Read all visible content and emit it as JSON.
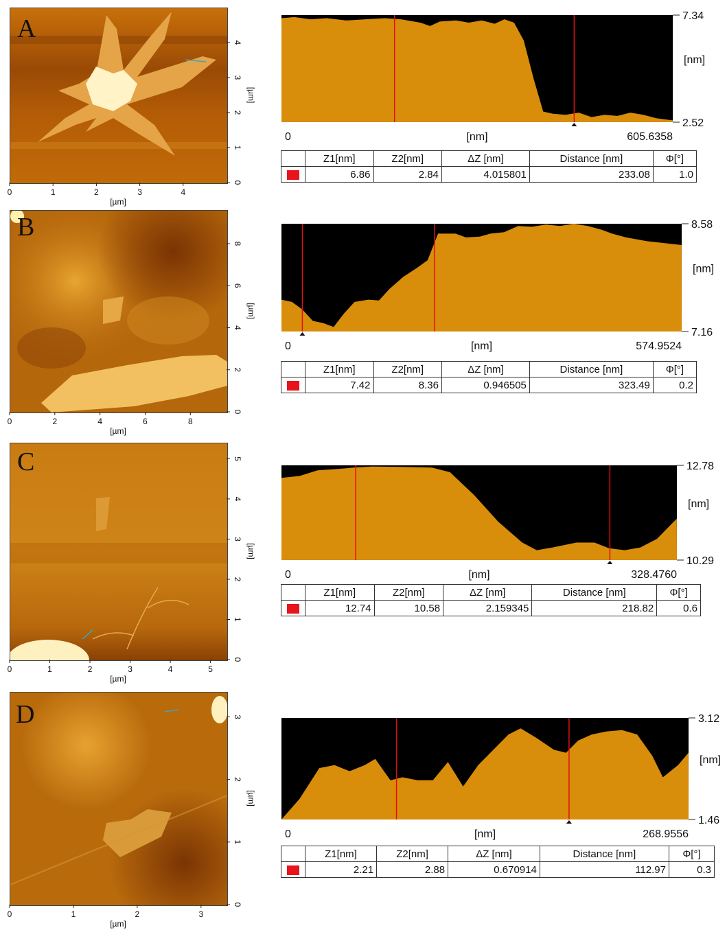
{
  "colors": {
    "profile_fill": "#d88d0b",
    "profile_bg": "#000000",
    "cursor_line": "#e11010",
    "swatch": "#e8141b"
  },
  "table_headers": [
    "Z1[nm]",
    "Z2[nm]",
    "ΔZ [nm]",
    "Distance [nm]",
    "Φ[°]"
  ],
  "panels": [
    {
      "letter": "A",
      "afm": {
        "x_ticks": [
          "0",
          "1",
          "2",
          "3",
          "4"
        ],
        "y_ticks": [
          "0",
          "1",
          "2",
          "3",
          "4"
        ],
        "x_unit": "[µm]",
        "y_unit": "[µm]",
        "x_range": [
          0,
          5.0
        ],
        "y_range": [
          0,
          5.0
        ]
      },
      "profile": {
        "x_start": "0",
        "x_end": "605.6358",
        "x_label": "[nm]",
        "y_top": "7.34",
        "y_bottom": "2.52",
        "y_label": "[nm]",
        "x_max": 605.6358,
        "y_min": 2.52,
        "y_max": 7.34,
        "cursors": [
          175,
          453
        ],
        "points": [
          [
            0,
            7.2
          ],
          [
            20,
            7.25
          ],
          [
            45,
            7.15
          ],
          [
            70,
            7.2
          ],
          [
            100,
            7.1
          ],
          [
            130,
            7.15
          ],
          [
            160,
            7.2
          ],
          [
            185,
            7.15
          ],
          [
            215,
            7.0
          ],
          [
            230,
            6.85
          ],
          [
            245,
            7.05
          ],
          [
            270,
            7.1
          ],
          [
            290,
            7.0
          ],
          [
            310,
            7.1
          ],
          [
            330,
            6.95
          ],
          [
            345,
            7.15
          ],
          [
            360,
            7.0
          ],
          [
            375,
            6.2
          ],
          [
            390,
            4.5
          ],
          [
            405,
            3.0
          ],
          [
            420,
            2.9
          ],
          [
            440,
            2.85
          ],
          [
            460,
            2.95
          ],
          [
            480,
            2.75
          ],
          [
            500,
            2.85
          ],
          [
            520,
            2.8
          ],
          [
            540,
            2.95
          ],
          [
            560,
            2.85
          ],
          [
            580,
            2.7
          ],
          [
            605.6,
            2.6
          ]
        ]
      },
      "table": [
        "6.86",
        "2.84",
        "4.015801",
        "233.08",
        "1.0"
      ]
    },
    {
      "letter": "B",
      "afm": {
        "x_ticks": [
          "0",
          "2",
          "4",
          "6",
          "8"
        ],
        "y_ticks": [
          "0",
          "2",
          "4",
          "6",
          "8"
        ],
        "x_unit": "[µm]",
        "y_unit": "[µm]",
        "x_range": [
          0,
          9.6
        ],
        "y_range": [
          0,
          9.6
        ]
      },
      "profile": {
        "x_start": "0",
        "x_end": "574.9524",
        "x_label": "[nm]",
        "y_top": "8.58",
        "y_bottom": "7.16",
        "y_label": "[nm]",
        "x_max": 574.9524,
        "y_min": 7.16,
        "y_max": 8.58,
        "cursors": [
          30,
          220
        ],
        "points": [
          [
            0,
            7.58
          ],
          [
            15,
            7.55
          ],
          [
            30,
            7.45
          ],
          [
            45,
            7.3
          ],
          [
            60,
            7.27
          ],
          [
            75,
            7.22
          ],
          [
            90,
            7.4
          ],
          [
            105,
            7.55
          ],
          [
            125,
            7.58
          ],
          [
            140,
            7.57
          ],
          [
            155,
            7.72
          ],
          [
            175,
            7.88
          ],
          [
            195,
            8.0
          ],
          [
            210,
            8.1
          ],
          [
            225,
            8.45
          ],
          [
            250,
            8.45
          ],
          [
            265,
            8.4
          ],
          [
            285,
            8.41
          ],
          [
            300,
            8.45
          ],
          [
            320,
            8.47
          ],
          [
            340,
            8.55
          ],
          [
            360,
            8.54
          ],
          [
            380,
            8.57
          ],
          [
            400,
            8.55
          ],
          [
            420,
            8.58
          ],
          [
            440,
            8.55
          ],
          [
            460,
            8.5
          ],
          [
            475,
            8.45
          ],
          [
            495,
            8.4
          ],
          [
            525,
            8.35
          ],
          [
            574.9,
            8.3
          ]
        ]
      },
      "table": [
        "7.42",
        "8.36",
        "0.946505",
        "323.49",
        "0.2"
      ]
    },
    {
      "letter": "C",
      "afm": {
        "x_ticks": [
          "0",
          "1",
          "2",
          "3",
          "4",
          "5"
        ],
        "y_ticks": [
          "0",
          "1",
          "2",
          "3",
          "4",
          "5"
        ],
        "x_unit": "[µm]",
        "y_unit": "[µm]",
        "x_range": [
          0,
          5.4
        ],
        "y_range": [
          0,
          5.4
        ]
      },
      "profile": {
        "x_start": "0",
        "x_end": "328.4760",
        "x_label": "[nm]",
        "y_top": "12.78",
        "y_bottom": "10.29",
        "y_label": "[nm]",
        "x_max": 328.476,
        "y_min": 10.29,
        "y_max": 12.78,
        "cursors": [
          61.7,
          272.8
        ],
        "points": [
          [
            0,
            12.45
          ],
          [
            15,
            12.5
          ],
          [
            30,
            12.65
          ],
          [
            45,
            12.68
          ],
          [
            60,
            12.72
          ],
          [
            75,
            12.75
          ],
          [
            100,
            12.74
          ],
          [
            125,
            12.72
          ],
          [
            140,
            12.6
          ],
          [
            160,
            12.0
          ],
          [
            180,
            11.3
          ],
          [
            200,
            10.75
          ],
          [
            212,
            10.55
          ],
          [
            225,
            10.62
          ],
          [
            245,
            10.75
          ],
          [
            260,
            10.75
          ],
          [
            272,
            10.6
          ],
          [
            285,
            10.55
          ],
          [
            298,
            10.62
          ],
          [
            312,
            10.85
          ],
          [
            328.4,
            11.38
          ]
        ]
      },
      "table": [
        "12.74",
        "10.58",
        "2.159345",
        "218.82",
        "0.6"
      ]
    },
    {
      "letter": "D",
      "afm": {
        "x_ticks": [
          "0",
          "1",
          "2",
          "3"
        ],
        "y_ticks": [
          "0",
          "1",
          "2",
          "3"
        ],
        "x_unit": "[µm]",
        "y_unit": "[µm]",
        "x_range": [
          0,
          3.4
        ],
        "y_range": [
          0,
          3.4
        ]
      },
      "profile": {
        "x_start": "0",
        "x_end": "268.9556",
        "x_label": "[nm]",
        "y_top": "3.12",
        "y_bottom": "1.46",
        "y_label": "[nm]",
        "x_max": 268.9556,
        "y_min": 1.46,
        "y_max": 3.12,
        "cursors": [
          76,
          190
        ],
        "points": [
          [
            0,
            1.46
          ],
          [
            12,
            1.8
          ],
          [
            25,
            2.3
          ],
          [
            35,
            2.35
          ],
          [
            45,
            2.25
          ],
          [
            55,
            2.35
          ],
          [
            62,
            2.45
          ],
          [
            72,
            2.1
          ],
          [
            80,
            2.15
          ],
          [
            90,
            2.1
          ],
          [
            100,
            2.1
          ],
          [
            110,
            2.4
          ],
          [
            120,
            2.0
          ],
          [
            130,
            2.35
          ],
          [
            140,
            2.6
          ],
          [
            150,
            2.85
          ],
          [
            158,
            2.95
          ],
          [
            168,
            2.8
          ],
          [
            180,
            2.6
          ],
          [
            188,
            2.55
          ],
          [
            196,
            2.75
          ],
          [
            205,
            2.85
          ],
          [
            215,
            2.9
          ],
          [
            225,
            2.92
          ],
          [
            235,
            2.85
          ],
          [
            245,
            2.5
          ],
          [
            252,
            2.15
          ],
          [
            262,
            2.35
          ],
          [
            268.9,
            2.55
          ]
        ]
      },
      "table": [
        "2.21",
        "2.88",
        "0.670914",
        "112.97",
        "0.3"
      ]
    }
  ]
}
